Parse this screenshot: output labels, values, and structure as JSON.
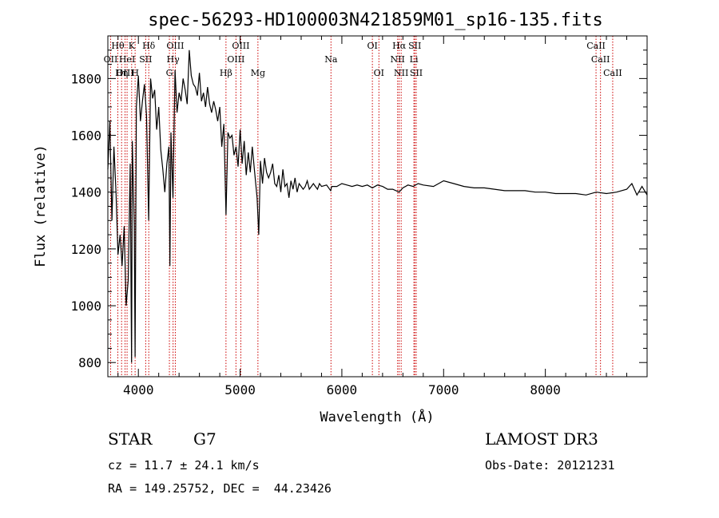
{
  "info": {
    "object_class": "STAR",
    "subclass": "G7",
    "survey": "LAMOST DR3",
    "cz": "cz = 11.7 ± 24.1 km/s",
    "obs_date": "Obs-Date: 20121231",
    "radec": "RA = 149.25752, DEC =  44.23426"
  },
  "chart_data": {
    "type": "line",
    "title": "spec-56293-HD100003N421859M01_sp16-135.fits",
    "xlabel": "Wavelength (Å)",
    "ylabel": "Flux (relative)",
    "xlim": [
      3700,
      9000
    ],
    "ylim": [
      750,
      1950
    ],
    "x_ticks": [
      4000,
      5000,
      6000,
      7000,
      8000
    ],
    "y_ticks": [
      800,
      1000,
      1200,
      1400,
      1600,
      1800
    ],
    "grid": false,
    "line_color": "#000000",
    "marker_color": "#cc0000",
    "series": [
      {
        "x": [
          3700,
          3720,
          3740,
          3760,
          3780,
          3800,
          3820,
          3840,
          3860,
          3880,
          3900,
          3920,
          3933,
          3940,
          3960,
          3968,
          3980,
          4000,
          4020,
          4040,
          4060,
          4080,
          4101,
          4120,
          4140,
          4160,
          4180,
          4200,
          4220,
          4240,
          4260,
          4280,
          4300,
          4310,
          4320,
          4340,
          4360,
          4380,
          4400,
          4420,
          4440,
          4460,
          4480,
          4500,
          4520,
          4540,
          4560,
          4580,
          4600,
          4620,
          4640,
          4660,
          4680,
          4700,
          4720,
          4740,
          4760,
          4780,
          4800,
          4820,
          4840,
          4861,
          4880,
          4900,
          4920,
          4940,
          4960,
          4980,
          5000,
          5020,
          5040,
          5060,
          5080,
          5100,
          5120,
          5140,
          5167,
          5183,
          5200,
          5220,
          5240,
          5260,
          5280,
          5300,
          5320,
          5340,
          5360,
          5380,
          5400,
          5420,
          5440,
          5460,
          5480,
          5500,
          5520,
          5540,
          5560,
          5580,
          5600,
          5620,
          5640,
          5660,
          5680,
          5700,
          5720,
          5740,
          5760,
          5780,
          5800,
          5850,
          5890,
          5900,
          5950,
          6000,
          6050,
          6100,
          6150,
          6200,
          6250,
          6300,
          6350,
          6400,
          6450,
          6500,
          6563,
          6600,
          6650,
          6700,
          6750,
          6800,
          6900,
          7000,
          7100,
          7200,
          7300,
          7400,
          7500,
          7600,
          7700,
          7800,
          7900,
          8000,
          8100,
          8200,
          8300,
          8400,
          8500,
          8600,
          8700,
          8800,
          8850,
          8900,
          8950,
          9000
        ],
        "y": [
          1480,
          1650,
          1300,
          1560,
          1400,
          1180,
          1250,
          1140,
          1280,
          1000,
          1090,
          1500,
          800,
          1580,
          1280,
          820,
          1700,
          1810,
          1650,
          1720,
          1780,
          1670,
          1300,
          1800,
          1730,
          1760,
          1620,
          1700,
          1550,
          1480,
          1400,
          1500,
          1560,
          1140,
          1610,
          1380,
          1830,
          1680,
          1750,
          1720,
          1800,
          1760,
          1710,
          1900,
          1810,
          1780,
          1770,
          1740,
          1820,
          1720,
          1750,
          1700,
          1770,
          1710,
          1680,
          1720,
          1690,
          1650,
          1700,
          1560,
          1640,
          1320,
          1610,
          1590,
          1600,
          1530,
          1560,
          1490,
          1620,
          1500,
          1580,
          1460,
          1540,
          1470,
          1560,
          1480,
          1380,
          1250,
          1510,
          1430,
          1520,
          1470,
          1450,
          1470,
          1500,
          1430,
          1420,
          1460,
          1400,
          1480,
          1420,
          1430,
          1380,
          1440,
          1410,
          1450,
          1400,
          1430,
          1420,
          1410,
          1420,
          1440,
          1410,
          1420,
          1430,
          1420,
          1410,
          1430,
          1420,
          1425,
          1405,
          1420,
          1420,
          1430,
          1425,
          1420,
          1425,
          1420,
          1425,
          1415,
          1425,
          1420,
          1410,
          1410,
          1400,
          1415,
          1425,
          1420,
          1430,
          1425,
          1420,
          1440,
          1430,
          1420,
          1415,
          1415,
          1410,
          1405,
          1405,
          1405,
          1400,
          1400,
          1395,
          1395,
          1395,
          1390,
          1400,
          1395,
          1400,
          1410,
          1430,
          1390,
          1420,
          1390
        ]
      }
    ],
    "lines": [
      {
        "name": "Hθ",
        "wave": 3798,
        "row": 0
      },
      {
        "name": "OII",
        "wave": 3727,
        "row": 1
      },
      {
        "name": "OIII",
        "wave": 3869,
        "row": 2
      },
      {
        "name": "HeI",
        "wave": 3889,
        "row": 1
      },
      {
        "name": "Hη",
        "wave": 3835,
        "row": 2
      },
      {
        "name": "K",
        "wave": 3934,
        "row": 0
      },
      {
        "name": "SII",
        "wave": 4072,
        "row": 1
      },
      {
        "name": "H",
        "wave": 3968,
        "row": 2
      },
      {
        "name": "Hδ",
        "wave": 4102,
        "row": 0
      },
      {
        "name": "OIII",
        "wave": 4363,
        "row": 0
      },
      {
        "name": "Hγ",
        "wave": 4341,
        "row": 1
      },
      {
        "name": "G",
        "wave": 4305,
        "row": 2
      },
      {
        "name": "Hβ",
        "wave": 4861,
        "row": 2
      },
      {
        "name": "OIII",
        "wave": 4959,
        "row": 1
      },
      {
        "name": "OIII",
        "wave": 5007,
        "row": 0
      },
      {
        "name": "Mg",
        "wave": 5175,
        "row": 2
      },
      {
        "name": "Na",
        "wave": 5893,
        "row": 1
      },
      {
        "name": "OI",
        "wave": 6300,
        "row": 0
      },
      {
        "name": "OI",
        "wave": 6364,
        "row": 2
      },
      {
        "name": "Hα",
        "wave": 6563,
        "row": 0
      },
      {
        "name": "NII",
        "wave": 6548,
        "row": 1
      },
      {
        "name": "NII",
        "wave": 6583,
        "row": 2
      },
      {
        "name": "SII",
        "wave": 6717,
        "row": 0
      },
      {
        "name": "Li",
        "wave": 6708,
        "row": 1
      },
      {
        "name": "SII",
        "wave": 6731,
        "row": 2
      },
      {
        "name": "CaII",
        "wave": 8498,
        "row": 0
      },
      {
        "name": "CaII",
        "wave": 8542,
        "row": 1
      },
      {
        "name": "CaII",
        "wave": 8662,
        "row": 2
      }
    ]
  }
}
